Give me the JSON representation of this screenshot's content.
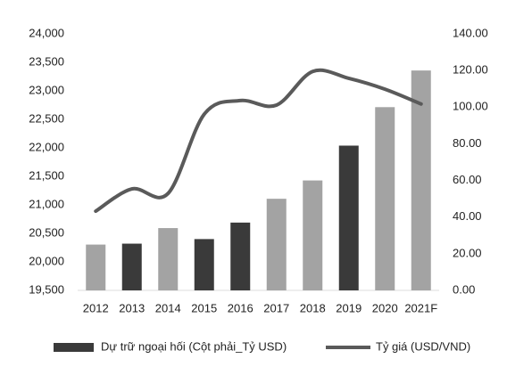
{
  "chart_data": {
    "type": "bar-line",
    "categories": [
      "2012",
      "2013",
      "2014",
      "2015",
      "2016",
      "2017",
      "2018",
      "2019",
      "2020",
      "2021F"
    ],
    "series": [
      {
        "name": "Dự trữ ngoại hối  (Cột phải_Tỷ USD)",
        "type": "bar",
        "axis": "y2",
        "color": "#3a3a3a",
        "colors": [
          "#a3a3a3",
          "#3a3a3a",
          "#a3a3a3",
          "#3a3a3a",
          "#3a3a3a",
          "#a3a3a3",
          "#a3a3a3",
          "#3a3a3a",
          "#a3a3a3",
          "#a3a3a3"
        ],
        "values": [
          25,
          25.5,
          34,
          28,
          37,
          50,
          60,
          79,
          100,
          120
        ]
      },
      {
        "name": "Tỷ giá (USD/VND)",
        "type": "line",
        "axis": "y",
        "color": "#5a5a5a",
        "values": [
          20890,
          21280,
          21200,
          22590,
          22830,
          22750,
          23340,
          23220,
          23030,
          22770
        ]
      }
    ],
    "ylim": [
      19500,
      24000
    ],
    "yticks": [
      {
        "value": 19500,
        "label": "19,500"
      },
      {
        "value": 20000,
        "label": "20,000"
      },
      {
        "value": 20500,
        "label": "20,500"
      },
      {
        "value": 21000,
        "label": "21,000"
      },
      {
        "value": 21500,
        "label": "21,500"
      },
      {
        "value": 22000,
        "label": "22,000"
      },
      {
        "value": 22500,
        "label": "22,500"
      },
      {
        "value": 23000,
        "label": "23,000"
      },
      {
        "value": 23500,
        "label": "23,500"
      },
      {
        "value": 24000,
        "label": "24,000"
      }
    ],
    "y2lim": [
      0,
      140
    ],
    "y2ticks": [
      {
        "value": 0,
        "label": "0.00"
      },
      {
        "value": 20,
        "label": "20.00"
      },
      {
        "value": 40,
        "label": "40.00"
      },
      {
        "value": 60,
        "label": "60.00"
      },
      {
        "value": 80,
        "label": "80.00"
      },
      {
        "value": 100,
        "label": "100.00"
      },
      {
        "value": 120,
        "label": "120.00"
      },
      {
        "value": 140,
        "label": "140.00"
      }
    ],
    "grid": false,
    "legend": "bottom"
  }
}
